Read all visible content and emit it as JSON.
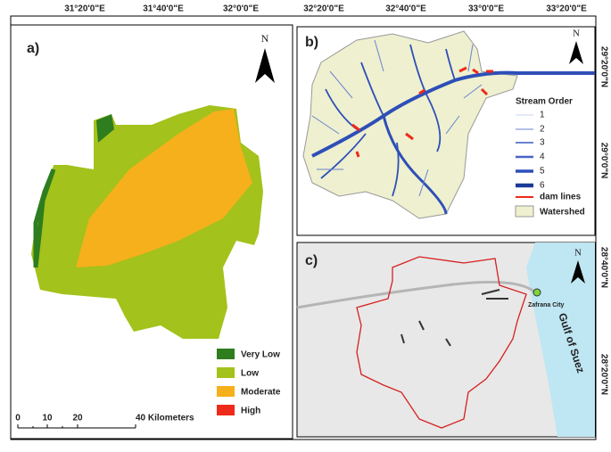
{
  "axes": {
    "top": [
      "31°20'0\"E",
      "31°40'0\"E",
      "32°0'0\"E",
      "32°20'0\"E",
      "32°40'0\"E",
      "33°0'0\"E",
      "33°20'0\"E"
    ],
    "right": [
      "29°20'0\"N",
      "29°0'0\"N",
      "28°40'0\"N",
      "28°20'0\"N"
    ]
  },
  "panel_a": {
    "label": "a)",
    "north": "N",
    "legend": [
      "Very Low",
      "Low",
      "Moderate",
      "High"
    ],
    "scale": [
      "0",
      "10",
      "20",
      "40 Kilometers"
    ]
  },
  "panel_b": {
    "label": "b)",
    "north": "N",
    "legend_title": "Stream Order",
    "orders": [
      "1",
      "2",
      "3",
      "4",
      "5",
      "6"
    ],
    "dam": "dam lines",
    "watershed": "Watershed"
  },
  "panel_c": {
    "label": "c)",
    "north": "N",
    "city": "Zafrana City",
    "gulf": "Gulf of Suez"
  }
}
